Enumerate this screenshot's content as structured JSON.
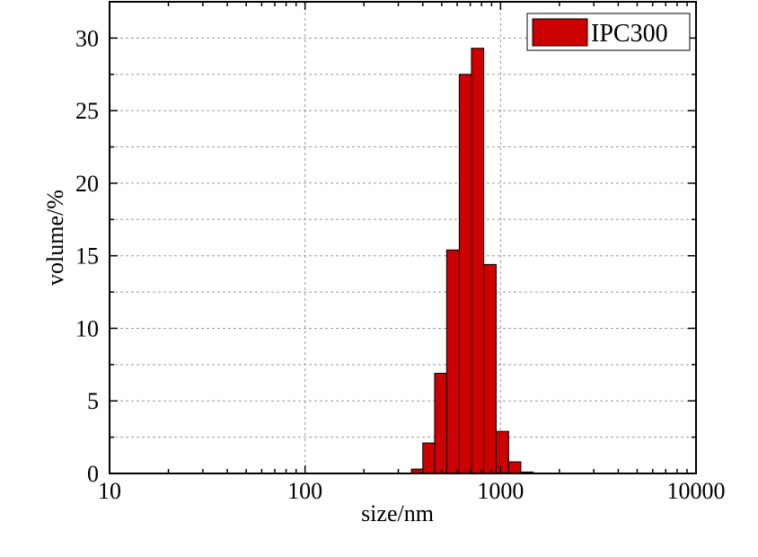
{
  "chart_data": {
    "type": "bar",
    "xlabel": "size/nm",
    "ylabel": "volume/%",
    "x_scale": "log",
    "xlim": [
      10,
      10000
    ],
    "ylim": [
      0,
      32.5
    ],
    "x_ticks": [
      10,
      100,
      1000,
      10000
    ],
    "x_tick_labels": [
      "10",
      "100",
      "1000",
      "10000"
    ],
    "y_ticks": [
      0,
      5,
      10,
      15,
      20,
      25,
      30
    ],
    "y_tick_labels": [
      "0",
      "5",
      "10",
      "15",
      "20",
      "25",
      "30"
    ],
    "grid": true,
    "legend_position": "top-right",
    "series": [
      {
        "name": "IPC300",
        "color": "#cc0000",
        "bins": [
          {
            "x0": 350,
            "x1": 400,
            "value": 0.3
          },
          {
            "x0": 400,
            "x1": 460,
            "value": 2.1
          },
          {
            "x0": 460,
            "x1": 530,
            "value": 6.9
          },
          {
            "x0": 530,
            "x1": 615,
            "value": 15.4
          },
          {
            "x0": 615,
            "x1": 710,
            "value": 27.5
          },
          {
            "x0": 710,
            "x1": 820,
            "value": 29.3
          },
          {
            "x0": 820,
            "x1": 950,
            "value": 14.4
          },
          {
            "x0": 950,
            "x1": 1100,
            "value": 2.9
          },
          {
            "x0": 1100,
            "x1": 1270,
            "value": 0.8
          },
          {
            "x0": 1270,
            "x1": 1470,
            "value": 0.1
          }
        ]
      }
    ]
  }
}
